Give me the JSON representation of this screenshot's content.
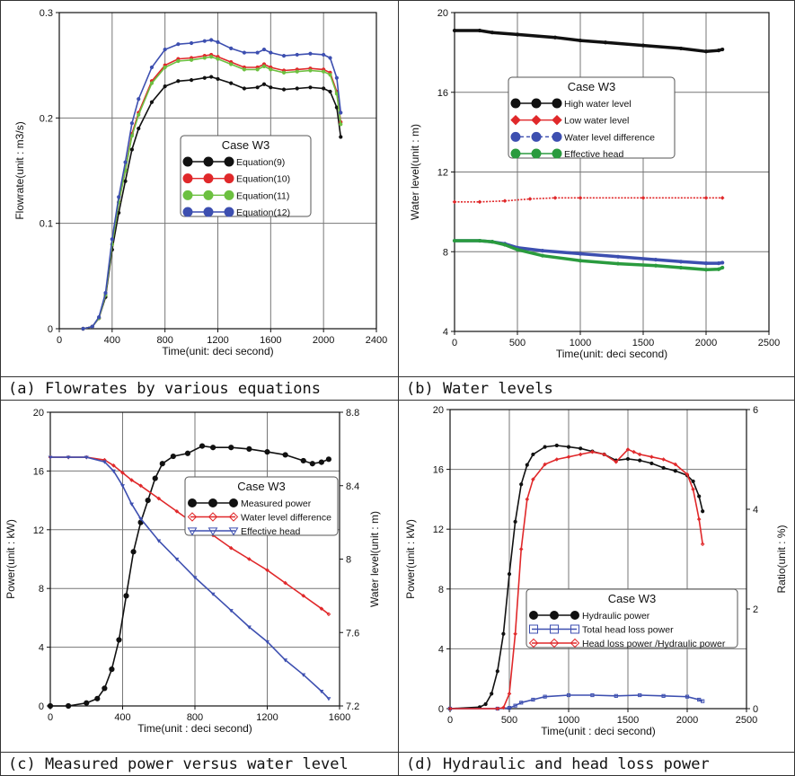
{
  "chart_data": [
    {
      "type": "line",
      "caption": "(a) Flowrates by various equations",
      "legend_title": "Case W3",
      "xlabel": "Time(unit: deci second)",
      "ylabel": "Flowrate(unit : m3/s)",
      "xlim": [
        0,
        2400
      ],
      "ylim": [
        0,
        0.3
      ],
      "xticks": [
        "0",
        "400",
        "800",
        "1200",
        "1600",
        "2000",
        "2400"
      ],
      "yticks": [
        "0",
        "0.1",
        "0.2",
        "0.3"
      ],
      "colors": {
        "s1": "#111111",
        "s2": "#e0282a",
        "s3": "#6cc040",
        "s4": "#3d4fb0"
      },
      "series": [
        {
          "name": "Equation(9)",
          "x": [
            180,
            250,
            300,
            350,
            400,
            450,
            500,
            550,
            600,
            700,
            800,
            900,
            1000,
            1100,
            1150,
            1200,
            1300,
            1400,
            1500,
            1550,
            1600,
            1700,
            1800,
            1900,
            2000,
            2050,
            2100,
            2130
          ],
          "y": [
            0,
            0.002,
            0.01,
            0.03,
            0.075,
            0.11,
            0.14,
            0.17,
            0.19,
            0.215,
            0.23,
            0.235,
            0.236,
            0.238,
            0.239,
            0.237,
            0.233,
            0.228,
            0.229,
            0.232,
            0.229,
            0.227,
            0.228,
            0.229,
            0.228,
            0.225,
            0.21,
            0.182
          ]
        },
        {
          "name": "Equation(10)",
          "x": [
            180,
            250,
            300,
            350,
            400,
            450,
            500,
            550,
            600,
            700,
            800,
            900,
            1000,
            1100,
            1150,
            1200,
            1300,
            1400,
            1500,
            1550,
            1600,
            1700,
            1800,
            1900,
            2000,
            2050,
            2100,
            2130
          ],
          "y": [
            0,
            0.002,
            0.01,
            0.032,
            0.08,
            0.12,
            0.15,
            0.185,
            0.205,
            0.235,
            0.25,
            0.256,
            0.257,
            0.259,
            0.26,
            0.258,
            0.253,
            0.248,
            0.248,
            0.251,
            0.248,
            0.245,
            0.246,
            0.247,
            0.246,
            0.243,
            0.225,
            0.196
          ]
        },
        {
          "name": "Equation(11)",
          "x": [
            180,
            250,
            300,
            350,
            400,
            450,
            500,
            550,
            600,
            700,
            800,
            900,
            1000,
            1100,
            1150,
            1200,
            1300,
            1400,
            1500,
            1550,
            1600,
            1700,
            1800,
            1900,
            2000,
            2050,
            2100,
            2130
          ],
          "y": [
            0,
            0.002,
            0.01,
            0.032,
            0.08,
            0.12,
            0.15,
            0.183,
            0.203,
            0.233,
            0.248,
            0.254,
            0.255,
            0.257,
            0.258,
            0.256,
            0.251,
            0.246,
            0.246,
            0.249,
            0.246,
            0.243,
            0.244,
            0.245,
            0.244,
            0.241,
            0.223,
            0.194
          ]
        },
        {
          "name": "Equation(12)",
          "x": [
            180,
            250,
            300,
            350,
            400,
            450,
            500,
            550,
            600,
            700,
            800,
            900,
            1000,
            1100,
            1150,
            1200,
            1300,
            1400,
            1500,
            1550,
            1600,
            1700,
            1800,
            1900,
            2000,
            2050,
            2100,
            2130
          ],
          "y": [
            0,
            0.002,
            0.011,
            0.034,
            0.085,
            0.125,
            0.158,
            0.195,
            0.218,
            0.248,
            0.265,
            0.27,
            0.271,
            0.273,
            0.274,
            0.272,
            0.266,
            0.262,
            0.262,
            0.265,
            0.262,
            0.259,
            0.26,
            0.261,
            0.26,
            0.257,
            0.238,
            0.205
          ]
        }
      ]
    },
    {
      "type": "line",
      "caption": "(b) Water levels",
      "legend_title": "Case W3",
      "xlabel": "Time(unit: deci second)",
      "ylabel": "Water level(unit : m)",
      "xlim": [
        0,
        2500
      ],
      "ylim": [
        4,
        20
      ],
      "xticks": [
        "0",
        "500",
        "1000",
        "1500",
        "2000",
        "2500"
      ],
      "yticks": [
        "4",
        "8",
        "12",
        "16",
        "20"
      ],
      "colors": {
        "s1": "#111111",
        "s2": "#e0282a",
        "s3": "#3d4fb0",
        "s4": "#2a9b3e"
      },
      "series": [
        {
          "name": "High water level",
          "x": [
            0,
            200,
            300,
            500,
            800,
            1000,
            1200,
            1500,
            1800,
            2000,
            2100,
            2130
          ],
          "y": [
            19.1,
            19.1,
            19.0,
            18.9,
            18.75,
            18.6,
            18.5,
            18.35,
            18.2,
            18.05,
            18.1,
            18.15
          ]
        },
        {
          "name": "Low water level",
          "x": [
            0,
            200,
            400,
            600,
            800,
            1000,
            1500,
            2000,
            2130
          ],
          "y": [
            10.5,
            10.5,
            10.55,
            10.65,
            10.7,
            10.7,
            10.7,
            10.7,
            10.7
          ]
        },
        {
          "name": "Water level difference",
          "x": [
            0,
            200,
            300,
            400,
            500,
            700,
            1000,
            1300,
            1600,
            1800,
            2000,
            2100,
            2130
          ],
          "y": [
            8.55,
            8.55,
            8.5,
            8.4,
            8.2,
            8.05,
            7.9,
            7.75,
            7.6,
            7.5,
            7.42,
            7.42,
            7.45
          ]
        },
        {
          "name": "Effective head",
          "x": [
            0,
            200,
            300,
            400,
            500,
            700,
            1000,
            1300,
            1600,
            1800,
            2000,
            2100,
            2130
          ],
          "y": [
            8.55,
            8.55,
            8.5,
            8.35,
            8.1,
            7.8,
            7.55,
            7.4,
            7.3,
            7.2,
            7.1,
            7.12,
            7.2
          ]
        }
      ]
    },
    {
      "type": "line",
      "caption": "(c) Measured power versus water level",
      "legend_title": "Case W3",
      "xlabel": "Time(unit : deci second)",
      "ylabel": "Power(unit : kW)",
      "y2label": "Water level(unit : m)",
      "xlim": [
        0,
        1600
      ],
      "ylim": [
        0,
        20
      ],
      "y2lim": [
        7.2,
        8.8
      ],
      "xticks": [
        "0",
        "400",
        "800",
        "1200",
        "1600"
      ],
      "yticks": [
        "0",
        "4",
        "8",
        "12",
        "16",
        "20"
      ],
      "y2ticks": [
        "7.2",
        "7.6",
        "8",
        "8.4",
        "8.8"
      ],
      "colors": {
        "s1": "#111111",
        "s2": "#e0282a",
        "s3": "#3d4fb0"
      },
      "series": [
        {
          "name": "Measured power",
          "axis": "left",
          "x": [
            0,
            100,
            200,
            260,
            300,
            340,
            380,
            420,
            460,
            500,
            540,
            580,
            620,
            680,
            760,
            840,
            900,
            1000,
            1100,
            1200,
            1300,
            1400,
            1450,
            1500,
            1540
          ],
          "y": [
            0,
            0,
            0.2,
            0.5,
            1.2,
            2.5,
            4.5,
            7.5,
            10.5,
            12.5,
            14,
            15.5,
            16.5,
            17,
            17.2,
            17.7,
            17.6,
            17.6,
            17.5,
            17.3,
            17.1,
            16.7,
            16.5,
            16.6,
            16.8
          ]
        },
        {
          "name": "Water level difference",
          "axis": "right",
          "x": [
            0,
            100,
            200,
            300,
            350,
            400,
            450,
            500,
            600,
            700,
            800,
            900,
            1000,
            1100,
            1200,
            1300,
            1400,
            1500,
            1540
          ],
          "y": [
            8.555,
            8.555,
            8.555,
            8.54,
            8.51,
            8.47,
            8.43,
            8.4,
            8.33,
            8.26,
            8.19,
            8.13,
            8.06,
            8.0,
            7.94,
            7.87,
            7.8,
            7.73,
            7.7
          ]
        },
        {
          "name": "Effective head",
          "axis": "right",
          "x": [
            0,
            100,
            200,
            300,
            350,
            400,
            450,
            500,
            600,
            700,
            800,
            900,
            1000,
            1100,
            1200,
            1300,
            1400,
            1500,
            1540
          ],
          "y": [
            8.555,
            8.555,
            8.555,
            8.53,
            8.48,
            8.4,
            8.3,
            8.22,
            8.1,
            8.0,
            7.9,
            7.81,
            7.72,
            7.63,
            7.55,
            7.45,
            7.37,
            7.28,
            7.24
          ]
        }
      ]
    },
    {
      "type": "line",
      "caption": "(d) Hydraulic and head loss power",
      "legend_title": "Case W3",
      "xlabel": "Time(unit : deci second)",
      "ylabel": "Power(unit : kW)",
      "y2label": "Ratio(unit : %)",
      "xlim": [
        0,
        2500
      ],
      "ylim": [
        0,
        20
      ],
      "y2lim": [
        0,
        6
      ],
      "xticks": [
        "0",
        "500",
        "1000",
        "1500",
        "2000",
        "2500"
      ],
      "yticks": [
        "0",
        "4",
        "8",
        "12",
        "16",
        "20"
      ],
      "y2ticks": [
        "0",
        "2",
        "4",
        "6"
      ],
      "colors": {
        "s1": "#111111",
        "s2": "#3d4fb0",
        "s3": "#e0282a"
      },
      "series": [
        {
          "name": "Hydraulic power",
          "axis": "left",
          "x": [
            0,
            250,
            300,
            350,
            400,
            450,
            500,
            550,
            600,
            650,
            700,
            800,
            900,
            1000,
            1100,
            1200,
            1300,
            1400,
            1500,
            1600,
            1700,
            1800,
            1900,
            2000,
            2050,
            2100,
            2130
          ],
          "y": [
            0,
            0.1,
            0.3,
            1,
            2.5,
            5,
            9,
            12.5,
            15,
            16.3,
            17,
            17.5,
            17.6,
            17.5,
            17.4,
            17.2,
            17,
            16.6,
            16.7,
            16.6,
            16.4,
            16.1,
            15.9,
            15.6,
            15.2,
            14.2,
            13.2
          ]
        },
        {
          "name": "Total head loss power",
          "axis": "left",
          "x": [
            0,
            400,
            500,
            550,
            600,
            700,
            800,
            1000,
            1200,
            1400,
            1600,
            1800,
            2000,
            2100,
            2130
          ],
          "y": [
            0,
            0,
            0.05,
            0.2,
            0.4,
            0.6,
            0.8,
            0.9,
            0.9,
            0.85,
            0.9,
            0.85,
            0.8,
            0.6,
            0.5
          ]
        },
        {
          "name": "Head loss power /Hydraulic power",
          "axis": "right",
          "x": [
            0,
            400,
            450,
            500,
            550,
            600,
            650,
            700,
            800,
            900,
            1000,
            1100,
            1200,
            1300,
            1400,
            1500,
            1550,
            1600,
            1700,
            1800,
            1900,
            2000,
            2050,
            2100,
            2130
          ],
          "y": [
            0,
            0,
            0.02,
            0.3,
            1.5,
            3.2,
            4.2,
            4.6,
            4.9,
            5.0,
            5.05,
            5.1,
            5.15,
            5.1,
            4.95,
            5.2,
            5.15,
            5.1,
            5.05,
            5.0,
            4.9,
            4.7,
            4.4,
            3.8,
            3.3
          ]
        }
      ]
    }
  ]
}
